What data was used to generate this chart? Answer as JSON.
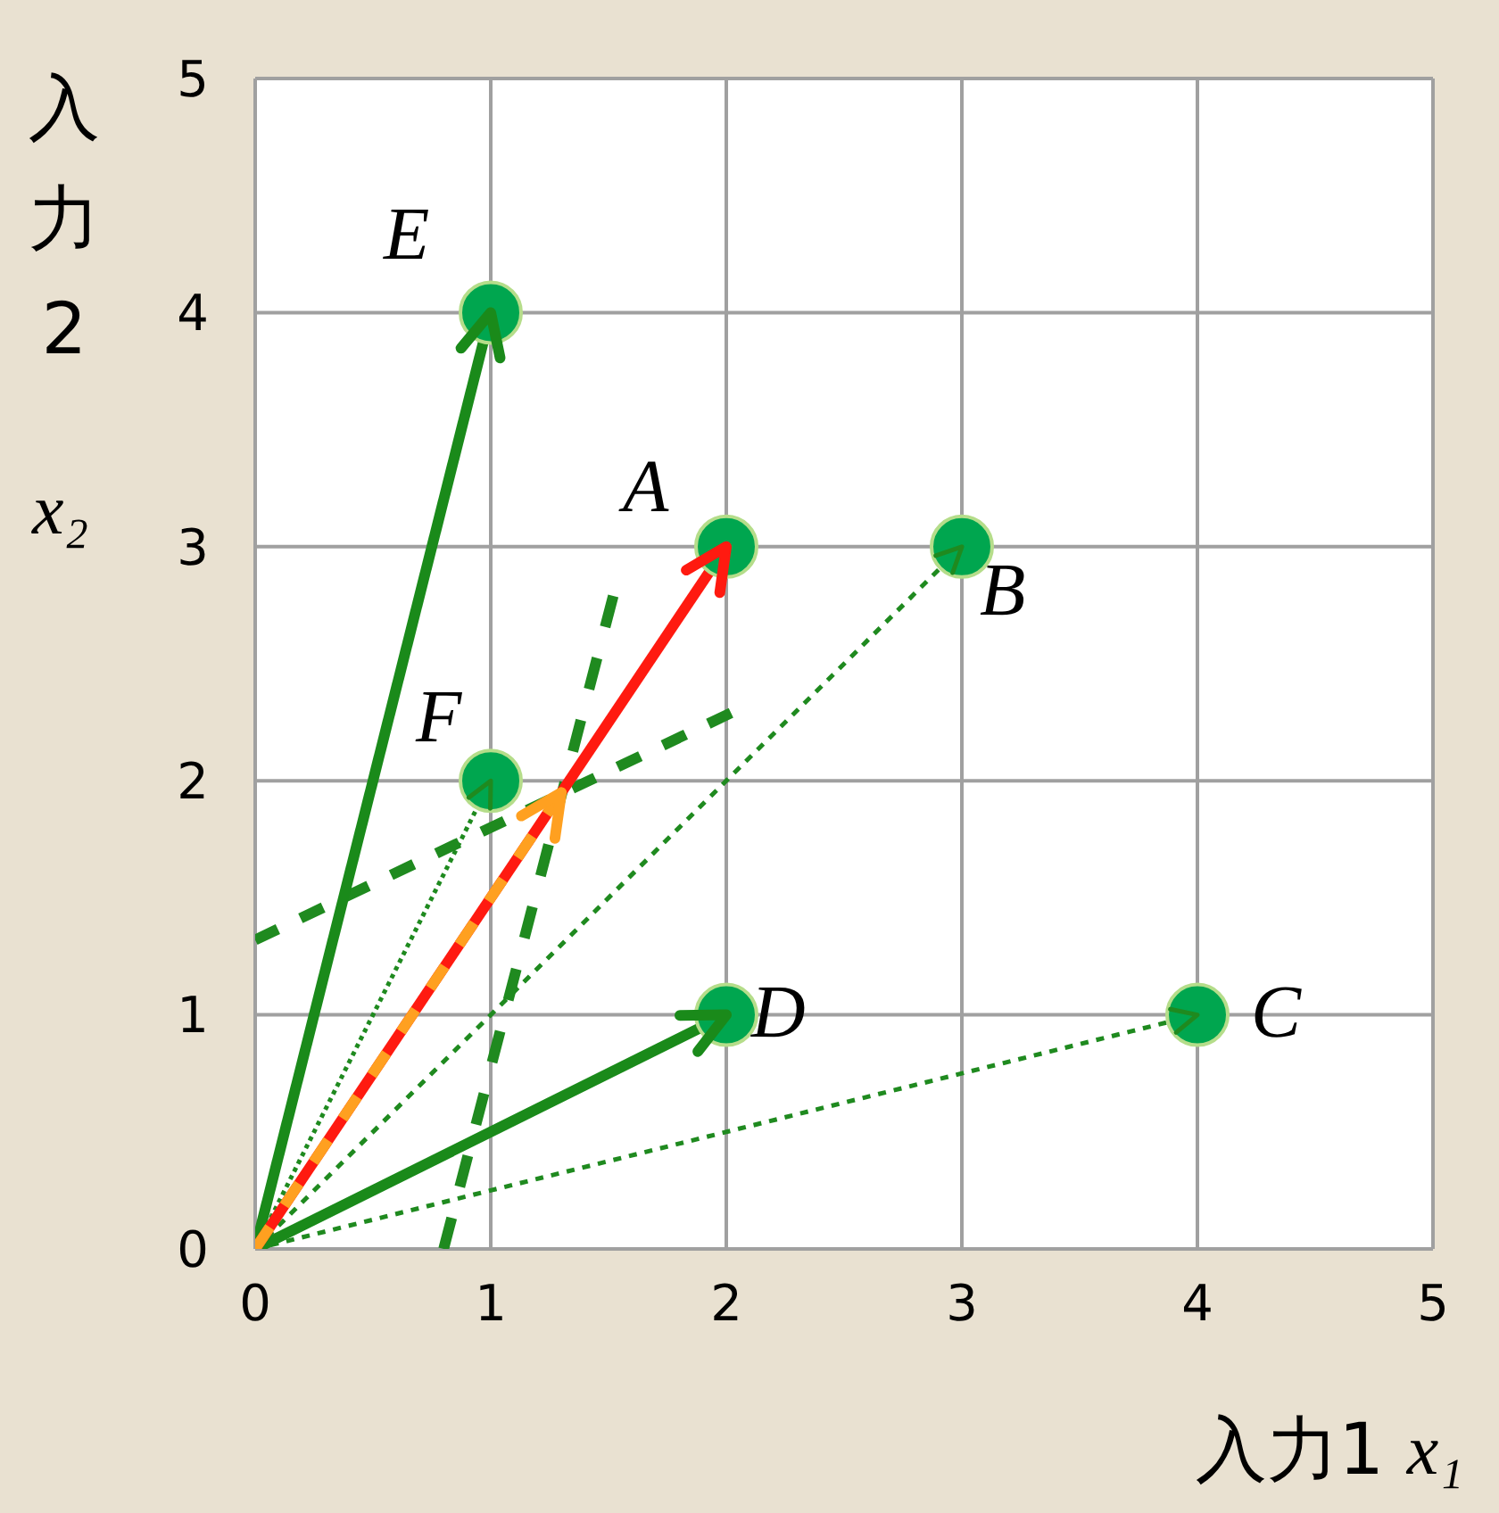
{
  "chart_data": {
    "type": "scatter",
    "xlabel": "入力1 x₁",
    "ylabel": "入力2 x₂",
    "xlim": [
      0,
      5
    ],
    "ylim": [
      0,
      5
    ],
    "xticks": [
      0,
      1,
      2,
      3,
      4,
      5
    ],
    "yticks": [
      0,
      1,
      2,
      3,
      4,
      5
    ],
    "grid": true,
    "series": [
      {
        "type": "line",
        "color": "#1f8a1f",
        "line_style": "dotted",
        "x": [
          0,
          3
        ],
        "values": [
          0,
          3
        ]
      },
      {
        "type": "line",
        "color": "#1f8a1f",
        "line_style": "dotted",
        "x": [
          0,
          4
        ],
        "values": [
          0,
          1
        ]
      },
      {
        "type": "line",
        "color": "#1f8a1f",
        "line_style": "dotted",
        "x": [
          0,
          1
        ],
        "values": [
          0,
          2
        ]
      },
      {
        "type": "line",
        "color": "#1f8a1f",
        "line_style": "dashed",
        "x": [
          0,
          2.02
        ],
        "values": [
          1.32,
          2.29
        ]
      },
      {
        "type": "line",
        "color": "#1f8a1f",
        "line_style": "dashed",
        "x": [
          0.8,
          1.52
        ],
        "values": [
          0,
          2.79
        ]
      },
      {
        "type": "line",
        "color": "#1a8a1a",
        "line_style": "solid",
        "x": [
          0,
          1
        ],
        "values": [
          0,
          4
        ]
      },
      {
        "type": "line",
        "color": "#1a8a1a",
        "line_style": "solid",
        "x": [
          0,
          2
        ],
        "values": [
          0,
          1
        ]
      },
      {
        "type": "line",
        "color": "#ff1a10",
        "line_style": "solid",
        "x": [
          0,
          2
        ],
        "values": [
          0,
          3
        ]
      },
      {
        "type": "line",
        "color": "#ffa020",
        "line_style": "dashed",
        "x": [
          0,
          1.3
        ],
        "values": [
          0,
          1.95
        ]
      },
      {
        "color": "#00a64f",
        "x": [
          2,
          3,
          4,
          2,
          1,
          1
        ],
        "values": [
          3,
          3,
          1,
          1,
          4,
          2
        ]
      }
    ],
    "annotations": [
      {
        "text": "A",
        "x": 2,
        "y": 3
      },
      {
        "text": "B",
        "x": 3,
        "y": 3
      },
      {
        "text": "C",
        "x": 4,
        "y": 1
      },
      {
        "text": "D",
        "x": 2,
        "y": 1
      },
      {
        "text": "E",
        "x": 1,
        "y": 4
      },
      {
        "text": "F",
        "x": 1,
        "y": 2
      }
    ]
  }
}
